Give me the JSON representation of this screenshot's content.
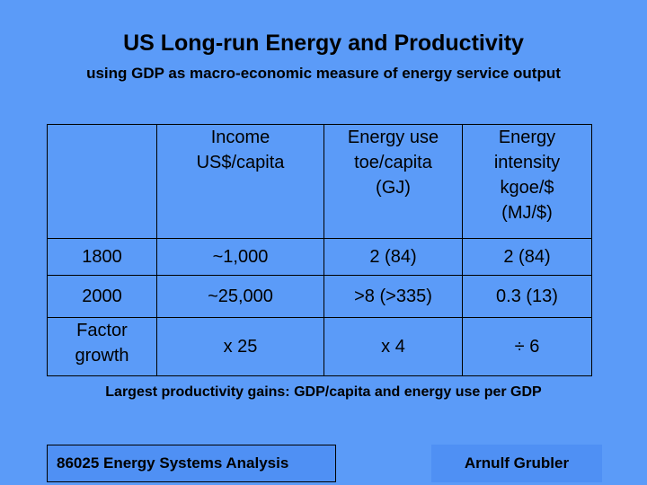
{
  "slide": {
    "title": "US Long-run Energy and Productivity",
    "subtitle": "using GDP as macro-economic measure of energy service output",
    "conclusion": "Largest productivity gains: GDP/capita and energy use per GDP"
  },
  "table": {
    "headers": [
      "",
      "Income\nUS$/capita",
      "Energy use\ntoe/capita\n(GJ)",
      "Energy\nintensity\nkgoe/$\n(MJ/$)"
    ],
    "rows": [
      [
        "1800",
        "~1,000",
        "2 (84)",
        "2 (84)"
      ],
      [
        "2000",
        "~25,000",
        ">8 (>335)",
        "0.3 (13)"
      ],
      [
        "Factor\ngrowth",
        "x 25",
        "x 4",
        "÷ 6"
      ]
    ]
  },
  "footer": {
    "course": "86025 Energy Systems Analysis",
    "author": "Arnulf Grubler"
  },
  "colors": {
    "background": "#5b9bf8",
    "footer_box": "#4f90f4"
  }
}
